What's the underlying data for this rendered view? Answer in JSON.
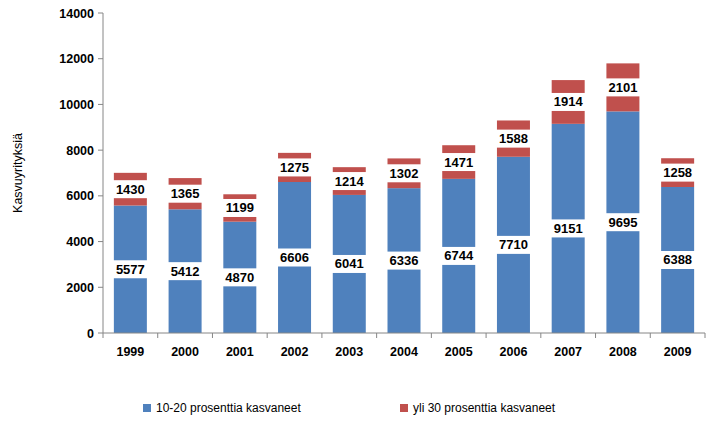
{
  "chart_data": {
    "type": "bar",
    "stacked": true,
    "data_labels": true,
    "y_label": "Kasvuyrityksiä",
    "categories": [
      "1999",
      "2000",
      "2001",
      "2002",
      "2003",
      "2004",
      "2005",
      "2006",
      "2007",
      "2008",
      "2009"
    ],
    "series": [
      {
        "name": "10-20 prosenttia kasvaneet",
        "color": "#4f81bd",
        "values": [
          5577,
          5412,
          4870,
          6606,
          6041,
          6336,
          6744,
          7710,
          9151,
          9695,
          6388
        ]
      },
      {
        "name": "yli 30 prosenttia kasvaneet",
        "color": "#c0504d",
        "values": [
          1430,
          1365,
          1199,
          1275,
          1214,
          1302,
          1471,
          1588,
          1914,
          2101,
          1258
        ]
      }
    ],
    "ylim": [
      0,
      14000
    ],
    "yticks": [
      0,
      2000,
      4000,
      6000,
      8000,
      10000,
      12000,
      14000
    ],
    "grid": false,
    "legend": "bottom"
  }
}
